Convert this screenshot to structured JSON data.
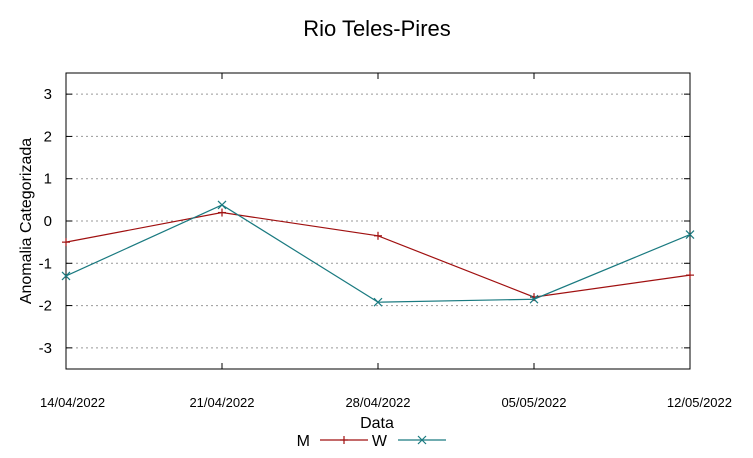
{
  "chart_data": {
    "type": "line",
    "title": "Rio Teles-Pires",
    "xlabel": "Data",
    "ylabel": "Anomalia Categorizada",
    "x": [
      "14/04/2022",
      "21/04/2022",
      "28/04/2022",
      "05/05/2022",
      "12/05/2022"
    ],
    "ylim": [
      -3.5,
      3.5
    ],
    "yticks": [
      3,
      2,
      1,
      0,
      -1,
      -2,
      -3
    ],
    "ytick_labels": [
      "3",
      "2",
      "1",
      "0",
      "-1",
      "-2",
      "-3"
    ],
    "grid": true,
    "legend": "bottom",
    "series": [
      {
        "name": "M",
        "color": "#a01010",
        "marker": "plus",
        "values": [
          -0.5,
          0.2,
          -0.35,
          -1.8,
          -1.28
        ]
      },
      {
        "name": "W",
        "color": "#1a7a80",
        "marker": "cross",
        "values": [
          -1.3,
          0.38,
          -1.92,
          -1.85,
          -0.32
        ]
      }
    ]
  }
}
